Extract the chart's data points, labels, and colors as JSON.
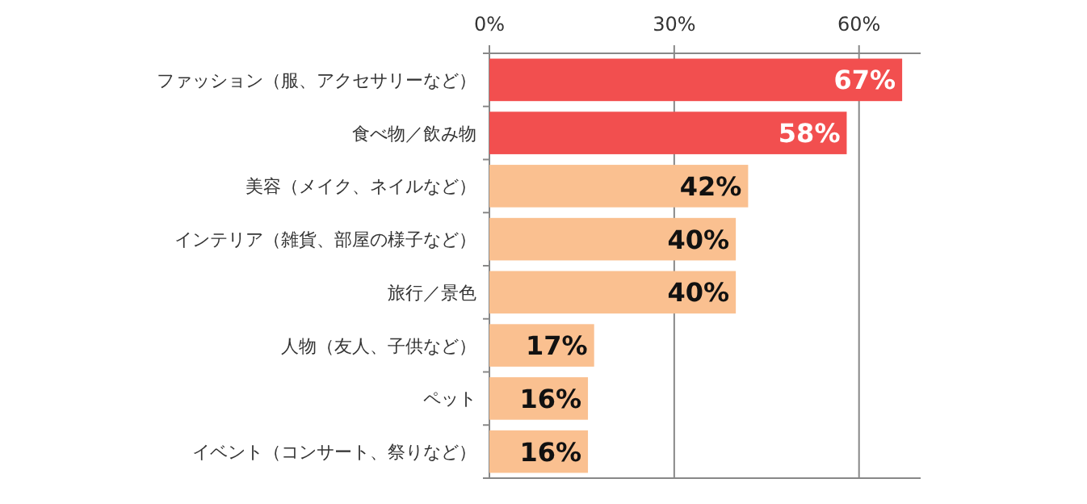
{
  "chart_data": {
    "type": "bar",
    "orientation": "horizontal",
    "categories": [
      "ファッション（服、アクセサリーなど）",
      "食べ物／飲み物",
      "美容（メイク、ネイルなど）",
      "インテリア（雑貨、部屋の様子など）",
      "旅行／景色",
      "人物（友人、子供など）",
      "ペット",
      "イベント（コンサート、祭りなど）"
    ],
    "values": [
      67,
      58,
      42,
      40,
      40,
      17,
      16,
      16
    ],
    "colors": [
      "#f24f4f",
      "#f24f4f",
      "#fac090",
      "#fac090",
      "#fac090",
      "#fac090",
      "#fac090",
      "#fac090"
    ],
    "value_labels": [
      "67%",
      "58%",
      "42%",
      "40%",
      "40%",
      "17%",
      "16%",
      "16%"
    ],
    "xlim": [
      0,
      70
    ],
    "xticks": [
      {
        "value": 0,
        "label": "0%"
      },
      {
        "value": 30,
        "label": "30%"
      },
      {
        "value": 60,
        "label": "60%"
      }
    ],
    "grid": "x"
  }
}
